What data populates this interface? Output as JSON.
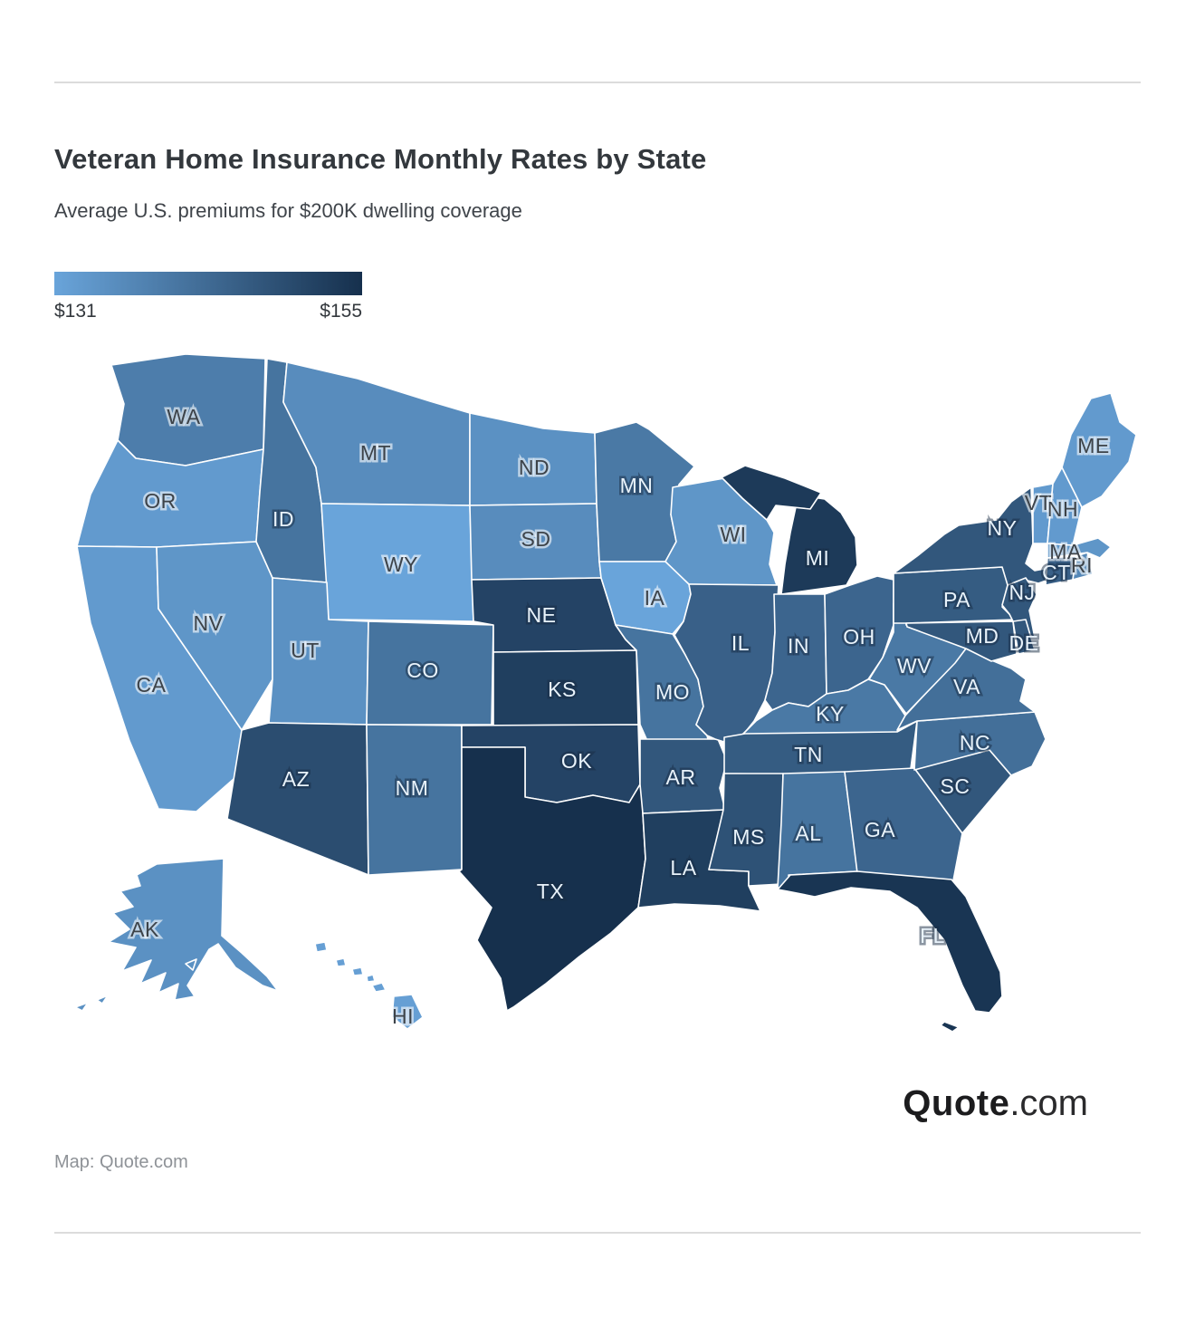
{
  "header": {
    "title": "Veteran Home Insurance Monthly Rates by State",
    "subtitle": "Average U.S. premiums for $200K dwelling coverage"
  },
  "legend": {
    "min_label": "$131",
    "max_label": "$155"
  },
  "branding": {
    "logo_bold": "Quote",
    "logo_suffix": ".com"
  },
  "footer": {
    "credit": "Map: Quote.com"
  },
  "chart_data": {
    "type": "choropleth",
    "title": "Veteran Home Insurance Monthly Rates by State",
    "subtitle": "Average U.S. premiums for $200K dwelling coverage",
    "unit": "USD per month",
    "legend_position": "top-left",
    "scale": {
      "min": 131,
      "max": 155,
      "min_label": "$131",
      "max_label": "$155",
      "color_min": "#69a4da",
      "color_max": "#16304d"
    },
    "label_colors": {
      "dark_text": "#3d4349",
      "light_text": "#e9f3fb",
      "light_text_threshold": 140
    },
    "states": [
      {
        "abbr": "WA",
        "value": 139
      },
      {
        "abbr": "OR",
        "value": 133
      },
      {
        "abbr": "CA",
        "value": 133
      },
      {
        "abbr": "NV",
        "value": 134
      },
      {
        "abbr": "ID",
        "value": 141
      },
      {
        "abbr": "MT",
        "value": 136
      },
      {
        "abbr": "WY",
        "value": 131
      },
      {
        "abbr": "UT",
        "value": 135
      },
      {
        "abbr": "CO",
        "value": 141
      },
      {
        "abbr": "AZ",
        "value": 149
      },
      {
        "abbr": "NM",
        "value": 141
      },
      {
        "abbr": "ND",
        "value": 135
      },
      {
        "abbr": "SD",
        "value": 136
      },
      {
        "abbr": "NE",
        "value": 151
      },
      {
        "abbr": "KS",
        "value": 152
      },
      {
        "abbr": "OK",
        "value": 151
      },
      {
        "abbr": "TX",
        "value": 155
      },
      {
        "abbr": "MN",
        "value": 140
      },
      {
        "abbr": "IA",
        "value": 131
      },
      {
        "abbr": "MO",
        "value": 141
      },
      {
        "abbr": "AR",
        "value": 147
      },
      {
        "abbr": "LA",
        "value": 152
      },
      {
        "abbr": "WI",
        "value": 134
      },
      {
        "abbr": "MI",
        "value": 153
      },
      {
        "abbr": "IL",
        "value": 145
      },
      {
        "abbr": "IN",
        "value": 144
      },
      {
        "abbr": "OH",
        "value": 144
      },
      {
        "abbr": "KY",
        "value": 140
      },
      {
        "abbr": "TN",
        "value": 146
      },
      {
        "abbr": "MS",
        "value": 148
      },
      {
        "abbr": "AL",
        "value": 141
      },
      {
        "abbr": "GA",
        "value": 144
      },
      {
        "abbr": "FL",
        "value": 154
      },
      {
        "abbr": "SC",
        "value": 147
      },
      {
        "abbr": "NC",
        "value": 142
      },
      {
        "abbr": "VA",
        "value": 142
      },
      {
        "abbr": "WV",
        "value": 140
      },
      {
        "abbr": "PA",
        "value": 146
      },
      {
        "abbr": "NY",
        "value": 147
      },
      {
        "abbr": "NJ",
        "value": 147
      },
      {
        "abbr": "MD",
        "value": 147
      },
      {
        "abbr": "DE",
        "value": 147
      },
      {
        "abbr": "CT",
        "value": 145
      },
      {
        "abbr": "RI",
        "value": 137
      },
      {
        "abbr": "MA",
        "value": 134
      },
      {
        "abbr": "VT",
        "value": 133
      },
      {
        "abbr": "NH",
        "value": 133
      },
      {
        "abbr": "ME",
        "value": 133
      },
      {
        "abbr": "AK",
        "value": 135
      },
      {
        "abbr": "HI",
        "value": 132
      }
    ]
  }
}
